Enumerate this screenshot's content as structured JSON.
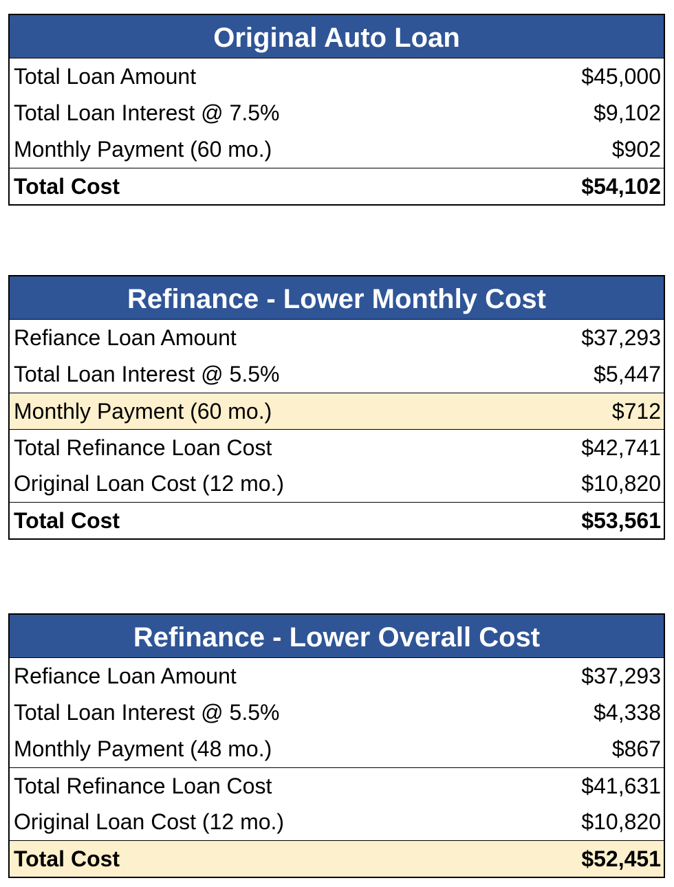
{
  "tables": [
    {
      "title": "Original Auto Loan",
      "rows": [
        {
          "label": "Total Loan Amount",
          "value": "$45,000"
        },
        {
          "label": "Total Loan Interest @ 7.5%",
          "value": "$9,102"
        },
        {
          "label": "Monthly Payment (60 mo.)",
          "value": "$902"
        },
        {
          "label": "Total Cost",
          "value": "$54,102"
        }
      ]
    },
    {
      "title": "Refinance - Lower Monthly Cost",
      "rows": [
        {
          "label": "Refiance Loan Amount",
          "value": "$37,293"
        },
        {
          "label": "Total Loan Interest @ 5.5%",
          "value": "$5,447"
        },
        {
          "label": "Monthly Payment (60 mo.)",
          "value": "$712"
        },
        {
          "label": "Total Refinance Loan Cost",
          "value": "$42,741"
        },
        {
          "label": "Original Loan Cost (12 mo.)",
          "value": "$10,820"
        },
        {
          "label": "Total Cost",
          "value": "$53,561"
        }
      ]
    },
    {
      "title": "Refinance - Lower Overall Cost",
      "rows": [
        {
          "label": "Refiance Loan Amount",
          "value": "$37,293"
        },
        {
          "label": "Total Loan Interest @ 5.5%",
          "value": "$4,338"
        },
        {
          "label": "Monthly Payment (48 mo.)",
          "value": "$867"
        },
        {
          "label": "Total Refinance Loan Cost",
          "value": "$41,631"
        },
        {
          "label": "Original Loan Cost (12 mo.)",
          "value": "$10,820"
        },
        {
          "label": "Total Cost",
          "value": "$52,451"
        }
      ]
    }
  ]
}
